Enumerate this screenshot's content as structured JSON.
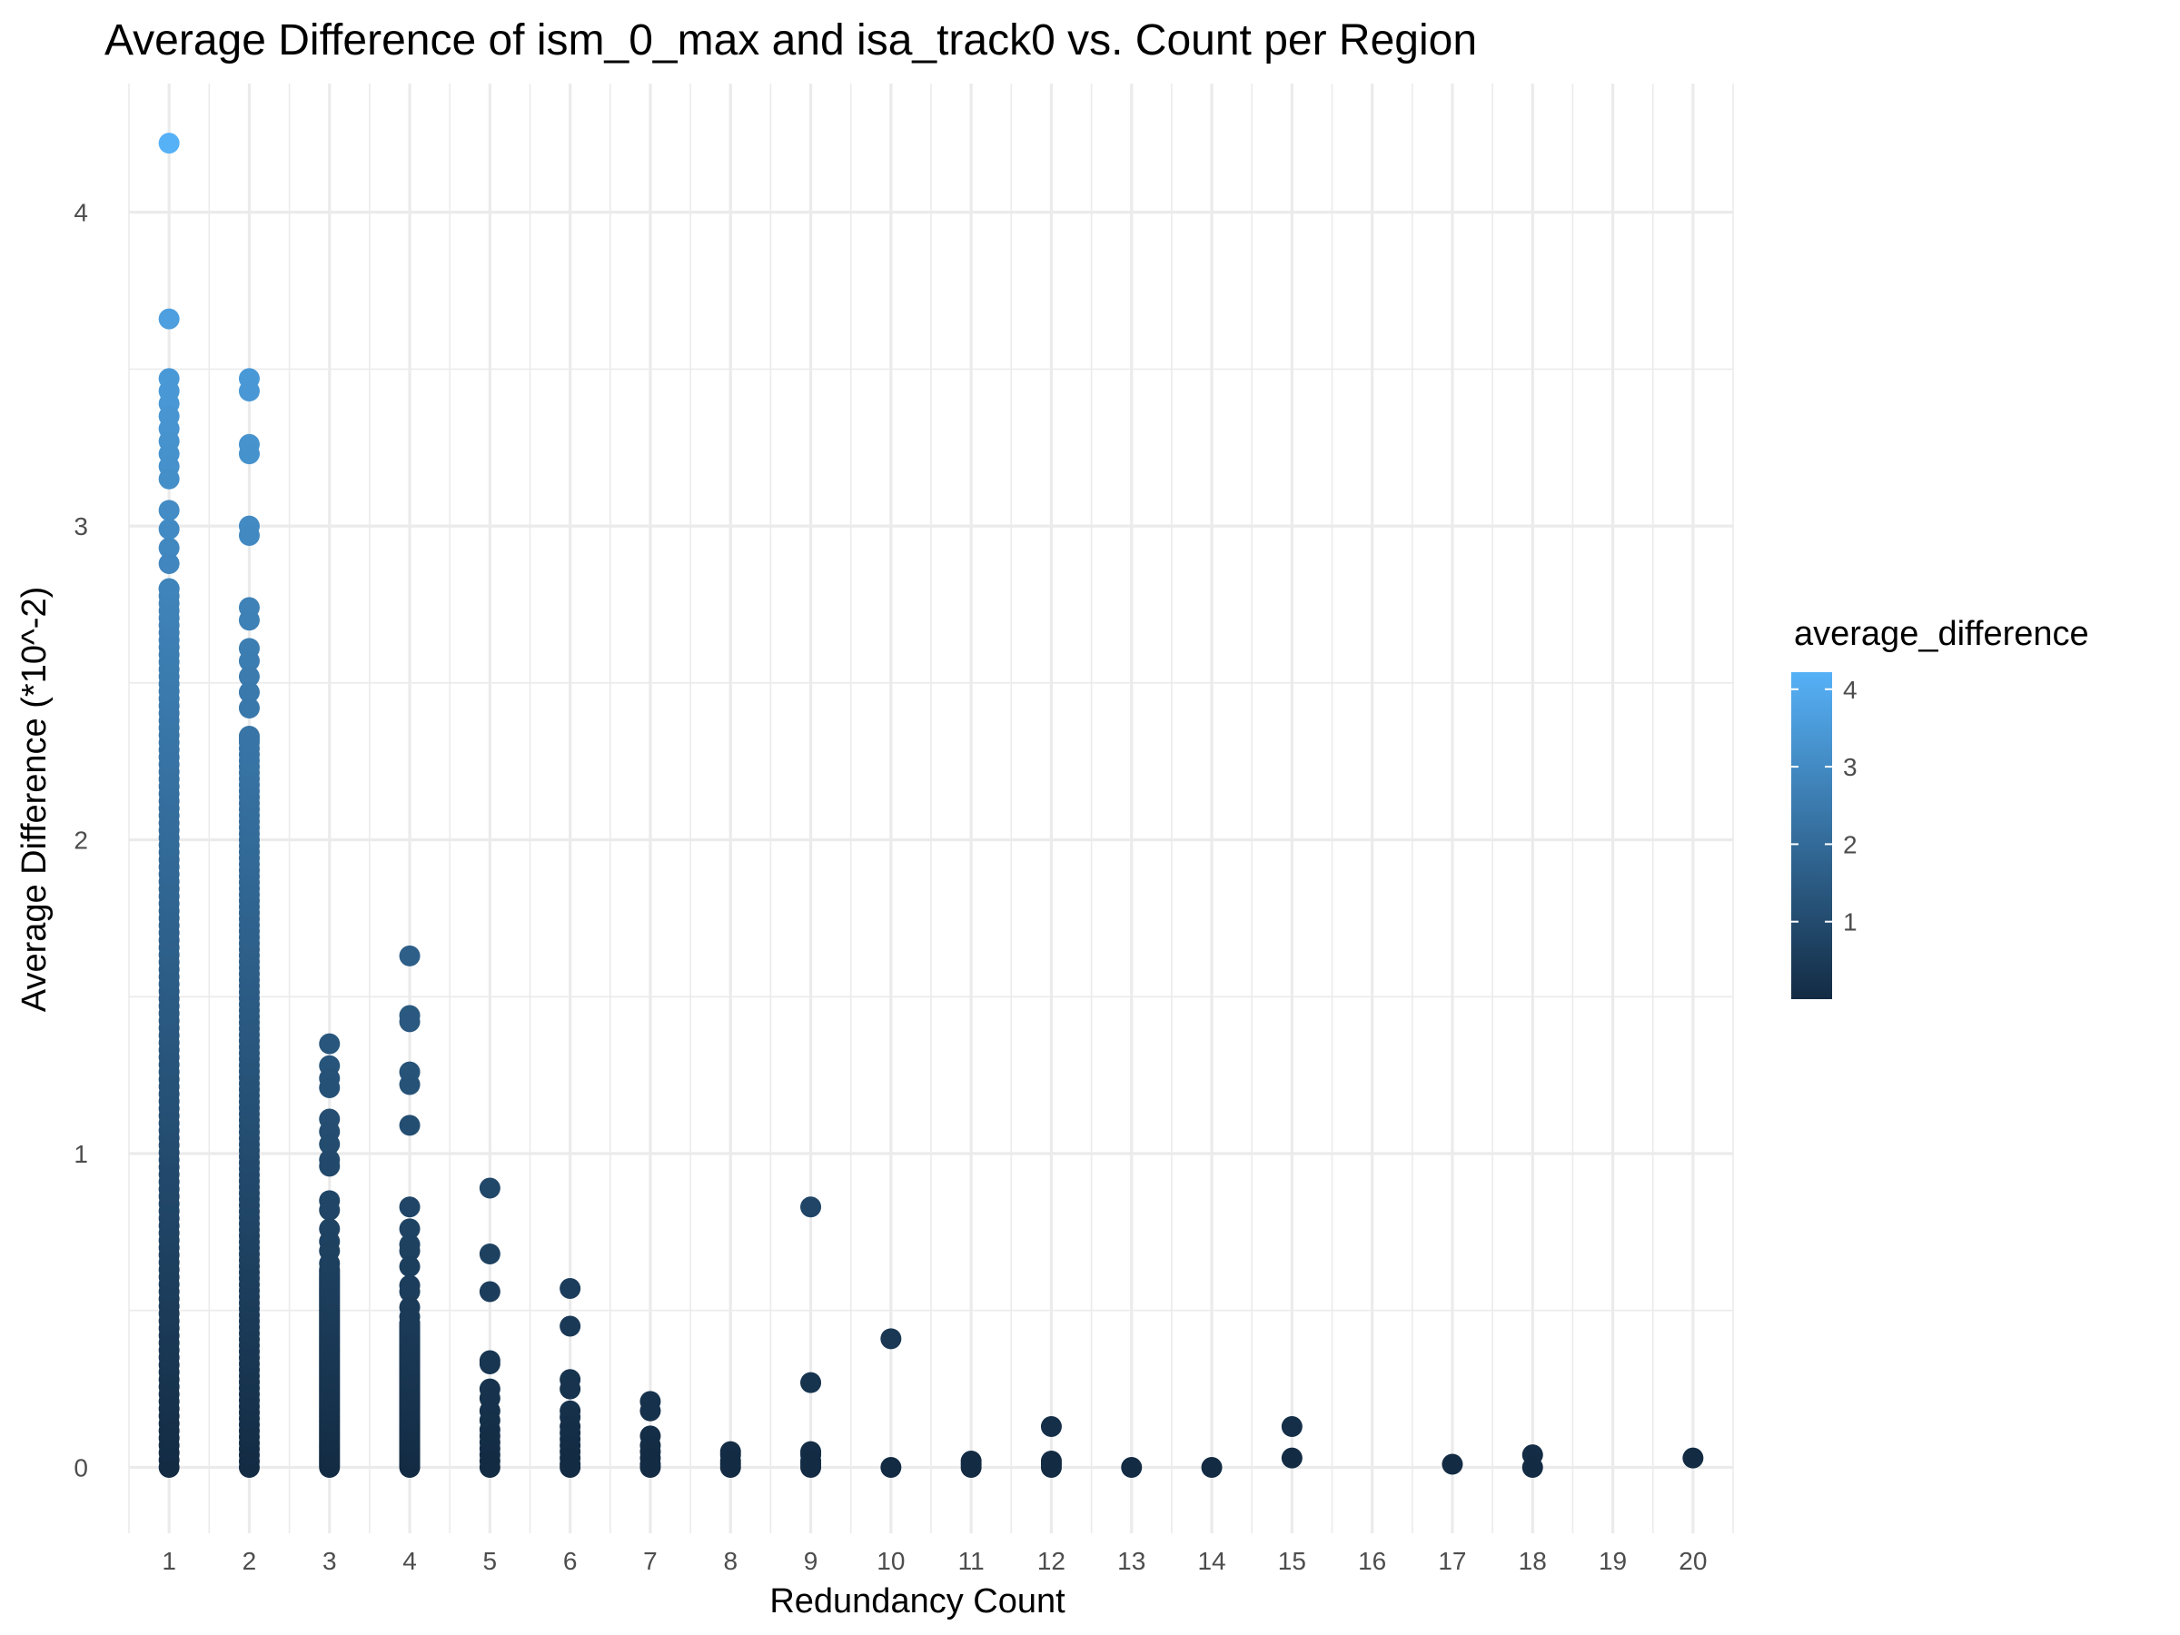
{
  "chart_data": {
    "type": "scatter",
    "title": "Average Difference of ism_0_max and isa_track0 vs. Count per Region",
    "xlabel": "Redundancy Count",
    "ylabel": "Average Difference (*10^-2)",
    "x_ticks": [
      "1",
      "2",
      "3",
      "4",
      "5",
      "6",
      "7",
      "8",
      "9",
      "10",
      "11",
      "12",
      "13",
      "14",
      "15",
      "16",
      "17",
      "18",
      "19",
      "20"
    ],
    "y_ticks": [
      "0",
      "1",
      "2",
      "3",
      "4"
    ],
    "xlim": [
      0.5,
      20.5
    ],
    "ylim": [
      -0.21,
      4.41
    ],
    "grid": true,
    "color_scale": {
      "title": "average_difference",
      "low_color": "#132b43",
      "high_color": "#56b1f7",
      "min": 0,
      "max": 4.22,
      "ticks": [
        "1",
        "2",
        "3",
        "4"
      ]
    },
    "points_by_x": {
      "1": [
        4.22,
        3.66,
        3.47,
        3.43,
        3.39,
        3.35,
        3.31,
        3.27,
        3.23,
        3.19,
        3.15,
        3.05,
        2.99,
        2.93,
        2.88,
        2.8
      ],
      "2": [
        3.47,
        3.43,
        3.26,
        3.23,
        3.0,
        2.97,
        2.74,
        2.7,
        2.61,
        2.57,
        2.52,
        2.47,
        2.42,
        2.32
      ],
      "3": [
        1.35,
        1.28,
        1.24,
        1.21,
        1.11,
        1.07,
        1.03,
        0.98,
        0.96,
        0.85,
        0.82,
        0.76,
        0.72,
        0.69,
        0.65
      ],
      "4": [
        1.63,
        1.44,
        1.42,
        1.26,
        1.22,
        1.09,
        0.83,
        0.76,
        0.71,
        0.69,
        0.64,
        0.58,
        0.56,
        0.51,
        0.48
      ],
      "5": [
        0.89,
        0.68,
        0.56,
        0.34,
        0.33,
        0.25,
        0.22,
        0.18,
        0.15,
        0.12,
        0.1,
        0.08,
        0.06,
        0.04,
        0.02,
        0.0
      ],
      "6": [
        0.57,
        0.45,
        0.28,
        0.25,
        0.18,
        0.16,
        0.13,
        0.11,
        0.09,
        0.07,
        0.05,
        0.03,
        0.01,
        0.0
      ],
      "7": [
        0.21,
        0.18,
        0.1,
        0.07,
        0.05,
        0.03,
        0.01,
        0.0
      ],
      "8": [
        0.05,
        0.04,
        0.02,
        0.01,
        0.0
      ],
      "9": [
        0.83,
        0.27,
        0.05,
        0.04,
        0.02,
        0.01,
        0.0
      ],
      "10": [
        0.41,
        0.0
      ],
      "11": [
        0.02,
        0.01,
        0.0
      ],
      "12": [
        0.13,
        0.02,
        0.01,
        0.0
      ],
      "13": [
        0.0
      ],
      "14": [
        0.0
      ],
      "15": [
        0.13,
        0.03
      ],
      "17": [
        0.01
      ],
      "18": [
        0.04,
        0.0
      ],
      "20": [
        0.03
      ]
    },
    "dense_columns": [
      {
        "x": 1,
        "from": 0,
        "to": 2.8
      },
      {
        "x": 2,
        "from": 0,
        "to": 2.33
      },
      {
        "x": 3,
        "from": 0,
        "to": 0.63
      },
      {
        "x": 4,
        "from": 0,
        "to": 0.46
      }
    ]
  }
}
